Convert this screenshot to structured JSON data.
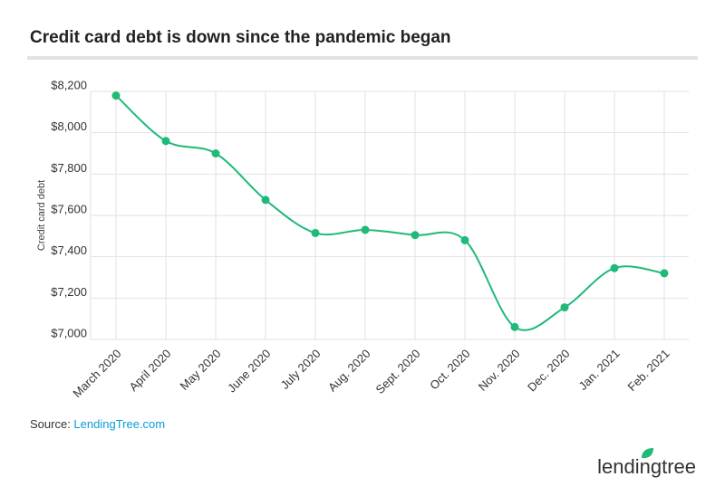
{
  "chart_data": {
    "type": "line",
    "title": "Credit card debt is down since the pandemic began",
    "y_label": "Credit card debt",
    "categories": [
      "March 2020",
      "April 2020",
      "May 2020",
      "June 2020",
      "July 2020",
      "Aug. 2020",
      "Sept. 2020",
      "Oct. 2020",
      "Nov. 2020",
      "Dec. 2020",
      "Jan. 2021",
      "Feb. 2021"
    ],
    "series": [
      {
        "name": "Credit card debt",
        "color": "#1fba78",
        "values": [
          8180,
          7960,
          7900,
          7675,
          7515,
          7530,
          7505,
          7480,
          7060,
          7155,
          7345,
          7320
        ]
      }
    ],
    "ylim": [
      7000,
      8200
    ],
    "yticks": [
      {
        "value": 7000,
        "label": "$7,000"
      },
      {
        "value": 7200,
        "label": "$7,200"
      },
      {
        "value": 7400,
        "label": "$7,400"
      },
      {
        "value": 7600,
        "label": "$7,600"
      },
      {
        "value": 7800,
        "label": "$7,800"
      },
      {
        "value": 8000,
        "label": "$8,000"
      },
      {
        "value": 8200,
        "label": "$8,200"
      }
    ],
    "grid": true,
    "source_prefix": "Source: ",
    "source_link": "LendingTree.com",
    "logo": "lendingtree"
  }
}
